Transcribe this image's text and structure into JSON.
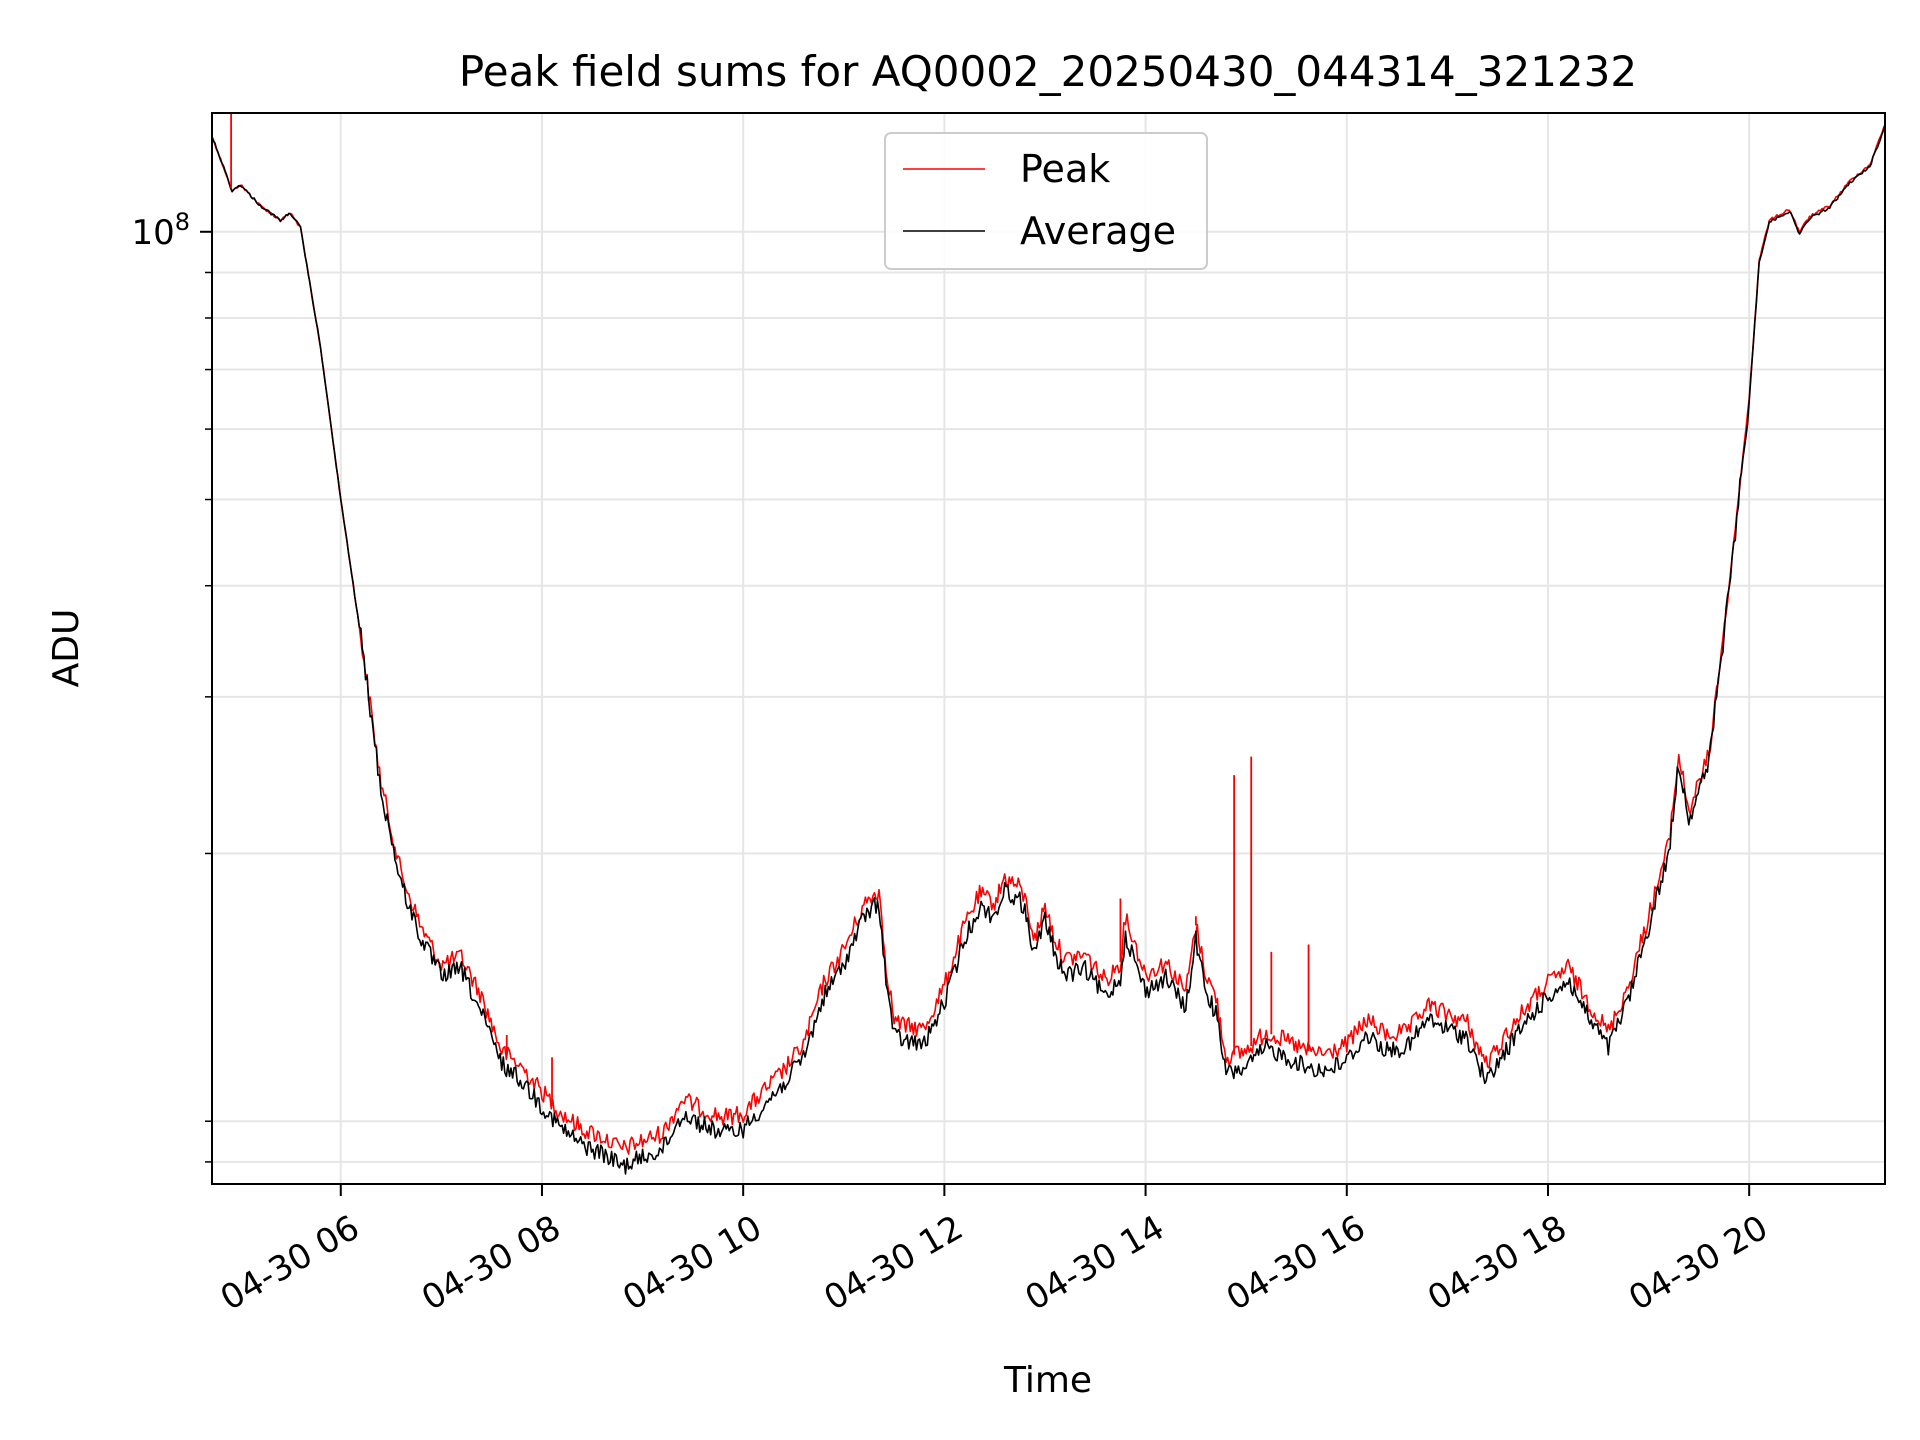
{
  "chart_data": {
    "type": "line",
    "title": "Peak field sums for AQ0002_20250430_044314_321232",
    "xlabel": "Time",
    "ylabel": "ADU",
    "x_tick_labels": [
      "04-30 06",
      "04-30 08",
      "04-30 10",
      "04-30 12",
      "04-30 14",
      "04-30 16",
      "04-30 18",
      "04-30 20"
    ],
    "x_tick_hours": [
      6,
      8,
      10,
      12,
      14,
      16,
      18,
      20
    ],
    "y_tick_labels": [
      {
        "base": "10",
        "exp": "8"
      }
    ],
    "y_tick_values": [
      100000000
    ],
    "y_scale": "log",
    "xlim_hours": [
      4.72,
      21.35
    ],
    "ylim": [
      8500000,
      136000000
    ],
    "grid": true,
    "legend_position": "upper center",
    "x_unit": "hours on 2025-04-30",
    "series": [
      {
        "name": "Peak",
        "color": "#ff0000",
        "x_hours": [
          4.72,
          4.85,
          4.92,
          5.0,
          5.2,
          5.4,
          5.5,
          5.6,
          5.8,
          6.0,
          6.2,
          6.4,
          6.6,
          6.8,
          7.0,
          7.2,
          7.4,
          7.6,
          7.8,
          8.0,
          8.2,
          8.4,
          8.6,
          8.8,
          9.0,
          9.2,
          9.4,
          9.6,
          9.8,
          10.0,
          10.2,
          10.4,
          10.6,
          10.8,
          11.0,
          11.2,
          11.35,
          11.42,
          11.5,
          11.6,
          11.8,
          12.0,
          12.2,
          12.35,
          12.5,
          12.6,
          12.75,
          12.8,
          12.9,
          13.0,
          13.1,
          13.2,
          13.4,
          13.6,
          13.75,
          13.8,
          14.0,
          14.2,
          14.4,
          14.5,
          14.6,
          14.7,
          14.8,
          15.0,
          15.2,
          15.4,
          15.6,
          15.8,
          16.0,
          16.2,
          16.4,
          16.6,
          16.8,
          17.0,
          17.2,
          17.3,
          17.4,
          17.6,
          17.8,
          18.0,
          18.2,
          18.4,
          18.6,
          18.8,
          19.0,
          19.2,
          19.3,
          19.4,
          19.6,
          19.8,
          20.0,
          20.1,
          20.2,
          20.4,
          20.5,
          20.6,
          20.8,
          21.0,
          21.2,
          21.35
        ],
        "y": [
          128000000,
          117000000,
          111000000,
          113000000,
          107000000,
          103000000,
          105000000,
          101000000,
          74000000,
          50000000,
          35000000,
          24000000,
          19000000,
          16500000,
          15000000,
          15300000,
          13800000,
          12000000,
          11500000,
          10800000,
          10200000,
          9800000,
          9600000,
          9300000,
          9500000,
          9700000,
          10600000,
          10300000,
          10100000,
          10200000,
          10800000,
          11400000,
          12200000,
          14300000,
          15600000,
          17500000,
          18200000,
          15000000,
          13000000,
          12800000,
          12700000,
          14200000,
          16600000,
          18000000,
          17600000,
          18800000,
          18300000,
          17800000,
          16000000,
          17500000,
          16000000,
          15200000,
          15400000,
          14400000,
          15100000,
          17000000,
          14600000,
          15100000,
          14000000,
          16600000,
          14600000,
          13800000,
          11800000,
          12000000,
          12600000,
          12300000,
          12000000,
          11900000,
          12200000,
          13000000,
          12500000,
          12600000,
          13500000,
          13200000,
          12900000,
          12100000,
          11600000,
          12600000,
          13500000,
          14300000,
          14900000,
          13600000,
          12600000,
          14200000,
          17000000,
          20500000,
          25800000,
          22300000,
          25800000,
          40000000,
          65000000,
          93000000,
          103000000,
          106000000,
          100000000,
          104000000,
          107000000,
          114000000,
          119000000,
          132000000
        ]
      },
      {
        "name": "Average",
        "color": "#000000",
        "x_hours": [
          4.72,
          4.85,
          4.92,
          5.0,
          5.2,
          5.4,
          5.5,
          5.6,
          5.8,
          6.0,
          6.2,
          6.4,
          6.6,
          6.8,
          7.0,
          7.2,
          7.4,
          7.6,
          7.8,
          8.0,
          8.2,
          8.4,
          8.6,
          8.8,
          9.0,
          9.2,
          9.4,
          9.6,
          9.8,
          10.0,
          10.2,
          10.4,
          10.6,
          10.8,
          11.0,
          11.2,
          11.35,
          11.42,
          11.5,
          11.6,
          11.8,
          12.0,
          12.2,
          12.35,
          12.5,
          12.6,
          12.75,
          12.8,
          12.9,
          13.0,
          13.1,
          13.2,
          13.4,
          13.6,
          13.75,
          13.8,
          14.0,
          14.2,
          14.4,
          14.5,
          14.6,
          14.7,
          14.8,
          15.0,
          15.2,
          15.4,
          15.6,
          15.8,
          16.0,
          16.2,
          16.4,
          16.6,
          16.8,
          17.0,
          17.2,
          17.3,
          17.4,
          17.6,
          17.8,
          18.0,
          18.2,
          18.4,
          18.6,
          18.8,
          19.0,
          19.2,
          19.3,
          19.4,
          19.6,
          19.8,
          20.0,
          20.1,
          20.2,
          20.4,
          20.5,
          20.6,
          20.8,
          21.0,
          21.2,
          21.35
        ],
        "y": [
          128000000,
          117000000,
          111000000,
          113000000,
          107000000,
          103000000,
          105000000,
          101000000,
          74000000,
          50000000,
          35000000,
          23500000,
          18500000,
          16000000,
          14600000,
          14800000,
          13200000,
          11600000,
          11100000,
          10400000,
          9800000,
          9400000,
          9200000,
          8900000,
          9100000,
          9300000,
          10200000,
          9900000,
          9700000,
          9800000,
          10400000,
          11000000,
          11800000,
          13800000,
          15000000,
          17000000,
          17600000,
          14400000,
          12500000,
          12300000,
          12200000,
          13600000,
          16000000,
          17400000,
          17000000,
          18200000,
          17700000,
          17200000,
          15400000,
          16900000,
          15400000,
          14600000,
          14800000,
          13800000,
          14500000,
          16200000,
          14000000,
          14500000,
          13400000,
          16000000,
          14000000,
          13200000,
          11300000,
          11500000,
          12100000,
          11800000,
          11500000,
          11400000,
          11700000,
          12500000,
          12000000,
          12100000,
          13000000,
          12700000,
          12400000,
          11600000,
          11100000,
          12100000,
          13000000,
          13800000,
          14400000,
          13100000,
          12100000,
          13700000,
          16500000,
          20000000,
          25300000,
          21900000,
          25300000,
          39500000,
          64500000,
          92500000,
          102500000,
          105500000,
          99500000,
          103500000,
          106500000,
          113500000,
          118500000,
          131500000
        ]
      }
    ],
    "spikes": [
      {
        "series": "Peak",
        "x_hour": 4.91,
        "y": 136000000
      },
      {
        "series": "Peak",
        "x_hour": 13.75,
        "y": 17800000
      },
      {
        "series": "Peak",
        "x_hour": 14.5,
        "y": 17000000
      },
      {
        "series": "Peak",
        "x_hour": 14.88,
        "y": 24500000
      },
      {
        "series": "Peak",
        "x_hour": 15.05,
        "y": 25700000
      },
      {
        "series": "Peak",
        "x_hour": 15.25,
        "y": 15500000
      },
      {
        "series": "Peak",
        "x_hour": 15.62,
        "y": 15800000
      },
      {
        "series": "Peak",
        "x_hour": 8.1,
        "y": 11800000
      },
      {
        "series": "Peak",
        "x_hour": 7.65,
        "y": 12500000
      }
    ]
  }
}
